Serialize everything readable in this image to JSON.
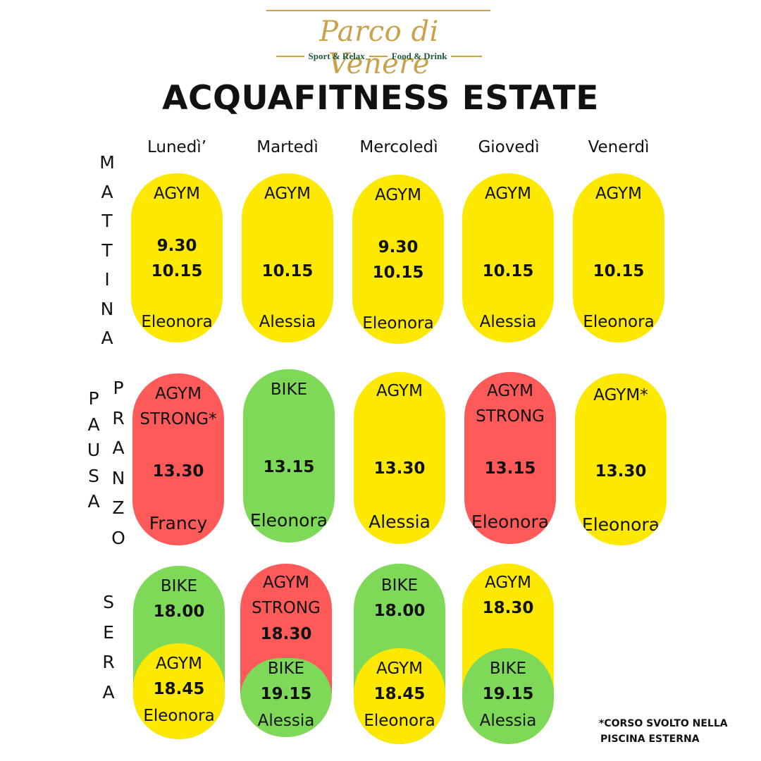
{
  "logo": {
    "brand": "Parco di Venere",
    "left_tag": "Sport & Relax",
    "right_tag": "Food & Drink"
  },
  "title": "ACQUAFITNESS ESTATE",
  "days": [
    "Lunedì’",
    "Martedì",
    "Mercoledì",
    "Giovedì",
    "Venerdì"
  ],
  "sections": {
    "mattina": [
      "M",
      "A",
      "T",
      "T",
      "I",
      "N",
      "A"
    ],
    "pausa": [
      "P",
      "A",
      "U",
      "S",
      "A"
    ],
    "pranzo": [
      "P",
      "R",
      "A",
      "N",
      "Z",
      "O"
    ],
    "sera": [
      "S",
      "E",
      "R",
      "A"
    ]
  },
  "colors": {
    "yellow": "#fce800",
    "red": "#ff5a5a",
    "green": "#7dd957",
    "gold": "#c9a24a"
  },
  "mattina": [
    {
      "course": "AGYM",
      "time1": "9.30",
      "time2": "10.15",
      "instructor": "Eleonora",
      "color": "yellow"
    },
    {
      "course": "AGYM",
      "time1": "",
      "time2": "10.15",
      "instructor": "Alessia",
      "color": "yellow"
    },
    {
      "course": "AGYM",
      "time1": "9.30",
      "time2": "10.15",
      "instructor": "Eleonora",
      "color": "yellow"
    },
    {
      "course": "AGYM",
      "time1": "",
      "time2": "10.15",
      "instructor": "Alessia",
      "color": "yellow"
    },
    {
      "course": "AGYM",
      "time1": "",
      "time2": "10.15",
      "instructor": "Eleonora",
      "color": "yellow"
    }
  ],
  "pranzo": [
    {
      "course": "AGYM",
      "course2": "STRONG*",
      "time": "13.30",
      "instructor": "Francy",
      "color": "red"
    },
    {
      "course": "BIKE",
      "course2": "",
      "time": "13.15",
      "instructor": "Eleonora",
      "color": "green"
    },
    {
      "course": "AGYM",
      "course2": "",
      "time": "13.30",
      "instructor": "Alessia",
      "color": "yellow"
    },
    {
      "course": "AGYM",
      "course2": "STRONG",
      "time": "13.15",
      "instructor": "Eleonora",
      "color": "red"
    },
    {
      "course": "AGYM*",
      "course2": "",
      "time": "13.30",
      "instructor": "Eleonora",
      "color": "yellow"
    }
  ],
  "sera": [
    {
      "top": {
        "course": "BIKE",
        "course2": "",
        "time": "18.00"
      },
      "bottom": {
        "course": "AGYM",
        "time": "18.45",
        "instructor": "Eleonora"
      }
    },
    {
      "top": {
        "course": "AGYM",
        "course2": "STRONG",
        "time": "18.30"
      },
      "bottom": {
        "course": "BIKE",
        "time": "19.15",
        "instructor": "Alessia"
      }
    },
    {
      "top": {
        "course": "BIKE",
        "course2": "",
        "time": "18.00"
      },
      "bottom": {
        "course": "AGYM",
        "time": "18.45",
        "instructor": "Eleonora"
      }
    },
    {
      "top": {
        "course": "AGYM",
        "course2": "",
        "time": "18.30"
      },
      "bottom": {
        "course": "BIKE",
        "time": "19.15",
        "instructor": "Alessia"
      }
    }
  ],
  "note": {
    "line1": "*CORSO SVOLTO NELLA",
    "line2": "PISCINA ESTERNA"
  }
}
